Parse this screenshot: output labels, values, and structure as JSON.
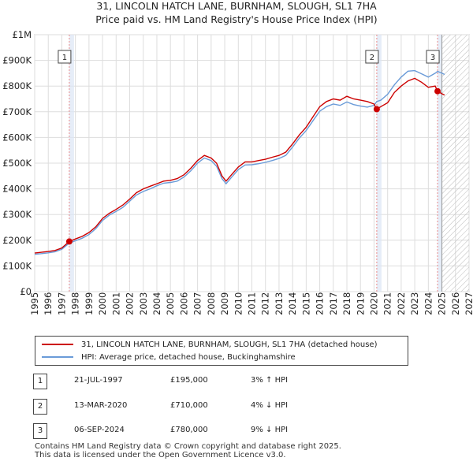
{
  "chart_data": {
    "type": "line",
    "title": "31, LINCOLN HATCH LANE, BURNHAM, SLOUGH, SL1 7HA",
    "subtitle": "Price paid vs. HM Land Registry's House Price Index (HPI)",
    "xlim": [
      1995,
      2027
    ],
    "ylim": [
      0,
      1000000
    ],
    "x_ticks": [
      "1995",
      "1996",
      "1997",
      "1998",
      "1999",
      "2000",
      "2001",
      "2002",
      "2003",
      "2004",
      "2005",
      "2006",
      "2007",
      "2008",
      "2009",
      "2010",
      "2011",
      "2012",
      "2013",
      "2014",
      "2015",
      "2016",
      "2017",
      "2018",
      "2019",
      "2020",
      "2021",
      "2022",
      "2023",
      "2024",
      "2025",
      "2026",
      "2027"
    ],
    "y_ticks": [
      {
        "value": 0,
        "label": "£0"
      },
      {
        "value": 100000,
        "label": "£100K"
      },
      {
        "value": 200000,
        "label": "£200K"
      },
      {
        "value": 300000,
        "label": "£300K"
      },
      {
        "value": 400000,
        "label": "£400K"
      },
      {
        "value": 500000,
        "label": "£500K"
      },
      {
        "value": 600000,
        "label": "£600K"
      },
      {
        "value": 700000,
        "label": "£700K"
      },
      {
        "value": 800000,
        "label": "£800K"
      },
      {
        "value": 900000,
        "label": "£900K"
      },
      {
        "value": 1000000,
        "label": "£1M"
      }
    ],
    "grid": true,
    "hatched_future_from": 2025.0,
    "colors": {
      "property": "#cc0000",
      "hpi": "#6a9bd8",
      "vline": "#e88a8a",
      "grid": "#dddddd",
      "shade": "#dce6f5"
    },
    "series": [
      {
        "name": "31, LINCOLN HATCH LANE, BURNHAM, SLOUGH, SL1 7HA (detached house)",
        "color": "#cc0000",
        "points": [
          [
            1995.0,
            150000
          ],
          [
            1995.5,
            153000
          ],
          [
            1996.0,
            156000
          ],
          [
            1996.5,
            160000
          ],
          [
            1997.0,
            170000
          ],
          [
            1997.55,
            195000
          ],
          [
            1998.0,
            205000
          ],
          [
            1998.5,
            215000
          ],
          [
            1999.0,
            230000
          ],
          [
            1999.5,
            252000
          ],
          [
            2000.0,
            285000
          ],
          [
            2000.5,
            305000
          ],
          [
            2001.0,
            320000
          ],
          [
            2001.5,
            337000
          ],
          [
            2002.0,
            360000
          ],
          [
            2002.5,
            385000
          ],
          [
            2003.0,
            400000
          ],
          [
            2003.5,
            410000
          ],
          [
            2004.0,
            420000
          ],
          [
            2004.5,
            430000
          ],
          [
            2005.0,
            433000
          ],
          [
            2005.5,
            440000
          ],
          [
            2006.0,
            455000
          ],
          [
            2006.5,
            480000
          ],
          [
            2007.0,
            510000
          ],
          [
            2007.5,
            530000
          ],
          [
            2008.0,
            520000
          ],
          [
            2008.4,
            500000
          ],
          [
            2008.8,
            450000
          ],
          [
            2009.1,
            430000
          ],
          [
            2009.5,
            455000
          ],
          [
            2010.0,
            485000
          ],
          [
            2010.5,
            505000
          ],
          [
            2011.0,
            505000
          ],
          [
            2011.5,
            510000
          ],
          [
            2012.0,
            515000
          ],
          [
            2012.5,
            523000
          ],
          [
            2013.0,
            530000
          ],
          [
            2013.5,
            543000
          ],
          [
            2014.0,
            575000
          ],
          [
            2014.5,
            610000
          ],
          [
            2015.0,
            640000
          ],
          [
            2015.5,
            680000
          ],
          [
            2016.0,
            720000
          ],
          [
            2016.5,
            740000
          ],
          [
            2017.0,
            750000
          ],
          [
            2017.5,
            745000
          ],
          [
            2018.0,
            760000
          ],
          [
            2018.5,
            750000
          ],
          [
            2019.0,
            745000
          ],
          [
            2019.5,
            740000
          ],
          [
            2020.0,
            730000
          ],
          [
            2020.2,
            710000
          ],
          [
            2020.5,
            720000
          ],
          [
            2021.0,
            735000
          ],
          [
            2021.5,
            775000
          ],
          [
            2022.0,
            800000
          ],
          [
            2022.5,
            820000
          ],
          [
            2023.0,
            830000
          ],
          [
            2023.5,
            815000
          ],
          [
            2024.0,
            795000
          ],
          [
            2024.5,
            800000
          ],
          [
            2024.68,
            780000
          ],
          [
            2025.0,
            770000
          ],
          [
            2025.2,
            765000
          ]
        ]
      },
      {
        "name": "HPI: Average price, detached house, Buckinghamshire",
        "color": "#6a9bd8",
        "points": [
          [
            1995.0,
            145000
          ],
          [
            1995.5,
            148000
          ],
          [
            1996.0,
            151000
          ],
          [
            1996.5,
            155000
          ],
          [
            1997.0,
            165000
          ],
          [
            1997.55,
            189000
          ],
          [
            1998.0,
            198000
          ],
          [
            1998.5,
            208000
          ],
          [
            1999.0,
            222000
          ],
          [
            1999.5,
            245000
          ],
          [
            2000.0,
            277000
          ],
          [
            2000.5,
            298000
          ],
          [
            2001.0,
            312000
          ],
          [
            2001.5,
            328000
          ],
          [
            2002.0,
            352000
          ],
          [
            2002.5,
            376000
          ],
          [
            2003.0,
            390000
          ],
          [
            2003.5,
            400000
          ],
          [
            2004.0,
            412000
          ],
          [
            2004.5,
            422000
          ],
          [
            2005.0,
            425000
          ],
          [
            2005.5,
            430000
          ],
          [
            2006.0,
            446000
          ],
          [
            2006.5,
            470000
          ],
          [
            2007.0,
            500000
          ],
          [
            2007.5,
            520000
          ],
          [
            2008.0,
            510000
          ],
          [
            2008.4,
            488000
          ],
          [
            2008.8,
            440000
          ],
          [
            2009.1,
            420000
          ],
          [
            2009.5,
            445000
          ],
          [
            2010.0,
            475000
          ],
          [
            2010.5,
            493000
          ],
          [
            2011.0,
            494000
          ],
          [
            2011.5,
            498000
          ],
          [
            2012.0,
            503000
          ],
          [
            2012.5,
            510000
          ],
          [
            2013.0,
            518000
          ],
          [
            2013.5,
            530000
          ],
          [
            2014.0,
            563000
          ],
          [
            2014.5,
            598000
          ],
          [
            2015.0,
            627000
          ],
          [
            2015.5,
            665000
          ],
          [
            2016.0,
            702000
          ],
          [
            2016.5,
            720000
          ],
          [
            2017.0,
            730000
          ],
          [
            2017.5,
            725000
          ],
          [
            2018.0,
            738000
          ],
          [
            2018.5,
            728000
          ],
          [
            2019.0,
            722000
          ],
          [
            2019.5,
            718000
          ],
          [
            2020.0,
            725000
          ],
          [
            2020.2,
            740000
          ],
          [
            2020.5,
            745000
          ],
          [
            2021.0,
            768000
          ],
          [
            2021.5,
            805000
          ],
          [
            2022.0,
            835000
          ],
          [
            2022.5,
            858000
          ],
          [
            2023.0,
            860000
          ],
          [
            2023.5,
            848000
          ],
          [
            2024.0,
            835000
          ],
          [
            2024.5,
            850000
          ],
          [
            2024.68,
            857000
          ],
          [
            2025.0,
            850000
          ],
          [
            2025.2,
            845000
          ]
        ]
      }
    ],
    "sales": [
      {
        "num": "1",
        "x": 1997.55,
        "price": 195000
      },
      {
        "num": "2",
        "x": 2020.2,
        "price": 710000
      },
      {
        "num": "3",
        "x": 2024.68,
        "price": 780000
      }
    ]
  },
  "legend": {
    "property": "31, LINCOLN HATCH LANE, BURNHAM, SLOUGH, SL1 7HA (detached house)",
    "hpi": "HPI: Average price, detached house, Buckinghamshire"
  },
  "sales_table": [
    {
      "num": "1",
      "date": "21-JUL-1997",
      "price": "£195,000",
      "hpi": "3% ↑ HPI"
    },
    {
      "num": "2",
      "date": "13-MAR-2020",
      "price": "£710,000",
      "hpi": "4% ↓ HPI"
    },
    {
      "num": "3",
      "date": "06-SEP-2024",
      "price": "£780,000",
      "hpi": "9% ↓ HPI"
    }
  ],
  "footer": {
    "line1": "Contains HM Land Registry data © Crown copyright and database right 2025.",
    "line2": "This data is licensed under the Open Government Licence v3.0."
  }
}
